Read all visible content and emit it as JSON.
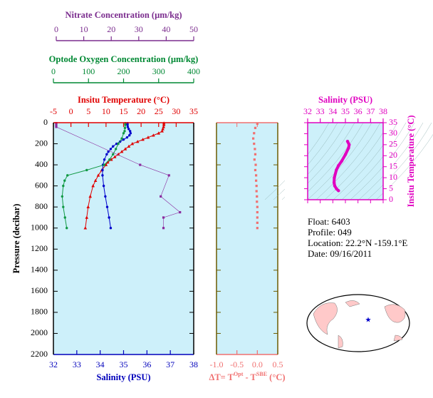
{
  "chart_data": [
    {
      "type": "scatter",
      "ylabel": "Pressure (decibar)",
      "ylim": [
        0,
        2200
      ],
      "y_inverted": true,
      "yticks": [
        0,
        200,
        400,
        600,
        800,
        1000,
        1200,
        1400,
        1600,
        1800,
        2000,
        2200
      ],
      "background": "#cdf0fa",
      "xaxes": [
        {
          "label": "Nitrate Concentration (µm/kg)",
          "lim": [
            0,
            50
          ],
          "ticks": [
            0,
            10,
            20,
            30,
            40,
            50
          ],
          "color": "#7b2d8e"
        },
        {
          "label": "Optode Oxygen Concentration (µm/kg)",
          "lim": [
            0,
            400
          ],
          "ticks": [
            0,
            100,
            200,
            300,
            400
          ],
          "color": "#008833"
        },
        {
          "label": "Insitu Temperature (°C)",
          "lim": [
            -5,
            35
          ],
          "ticks": [
            -5,
            0,
            5,
            10,
            15,
            20,
            25,
            30,
            35
          ],
          "color": "#e00000"
        },
        {
          "label": "Salinity (PSU)",
          "lim": [
            32,
            38
          ],
          "ticks": [
            32,
            33,
            34,
            35,
            36,
            37,
            38
          ],
          "color": "#0000bb"
        }
      ],
      "series": [
        {
          "axis": 2,
          "color": "#e00000",
          "marker": "triangle",
          "x": [
            26.5,
            26.5,
            26.4,
            26.2,
            26,
            25,
            23.5,
            22,
            20.5,
            19,
            17.5,
            16.5,
            15.5,
            14.5,
            13.5,
            12.5,
            11.5,
            10.5,
            10,
            8.8,
            7.8,
            7,
            6.3,
            5.5,
            4.9,
            4.5,
            4.1
          ],
          "y": [
            5,
            20,
            40,
            60,
            80,
            100,
            120,
            140,
            160,
            180,
            200,
            225,
            250,
            275,
            300,
            325,
            350,
            375,
            400,
            450,
            500,
            550,
            600,
            700,
            800,
            900,
            1000
          ]
        },
        {
          "axis": 3,
          "color": "#0000cc",
          "marker": "circle",
          "x": [
            35.17,
            35.17,
            35.18,
            35.22,
            35.28,
            35.3,
            35.25,
            35.15,
            35.0,
            34.85,
            34.7,
            34.55,
            34.45,
            34.35,
            34.28,
            34.18,
            34.12,
            34.1,
            34.1,
            34.15,
            34.22,
            34.3,
            34.38,
            34.45
          ],
          "y": [
            5,
            20,
            40,
            60,
            80,
            100,
            120,
            140,
            160,
            180,
            200,
            225,
            250,
            275,
            300,
            350,
            400,
            450,
            500,
            600,
            700,
            800,
            900,
            1000
          ]
        },
        {
          "axis": 1,
          "color": "#119944",
          "marker": "circle",
          "x": [
            205,
            205,
            204,
            203,
            200,
            195,
            185,
            178,
            170,
            160,
            145,
            95,
            40,
            32,
            28,
            25,
            28,
            33,
            38
          ],
          "y": [
            5,
            20,
            50,
            80,
            100,
            150,
            200,
            250,
            300,
            350,
            400,
            450,
            500,
            550,
            600,
            700,
            800,
            900,
            1000
          ]
        },
        {
          "axis": 0,
          "color": "#8b2c9e",
          "marker": "square",
          "x": [
            0,
            0,
            0,
            30.5,
            41,
            38,
            45,
            39,
            39
          ],
          "y": [
            5,
            20,
            40,
            400,
            500,
            700,
            850,
            900,
            1000
          ]
        }
      ]
    },
    {
      "type": "scatter",
      "xlabel": [
        "ΔT= T",
        "Opt",
        " - T",
        "SBE",
        " (°C)"
      ],
      "xlim": [
        -1,
        0.5
      ],
      "xticks": [
        {
          "value": -1,
          "label": "-1.0"
        },
        {
          "value": -0.5,
          "label": "-0.5"
        },
        {
          "value": 0,
          "label": "0.0"
        },
        0.5
      ],
      "ylim": [
        0,
        2200
      ],
      "color": "#f07070",
      "background": "#cdf0fa",
      "x": [
        0,
        -0.05,
        -0.08,
        -0.1,
        -0.08,
        -0.06,
        -0.05,
        -0.07,
        -0.04,
        -0.05,
        -0.03,
        -0.03,
        -0.02,
        -0.02,
        -0.01,
        -0.01,
        0,
        0,
        0,
        0,
        0
      ],
      "y": [
        10,
        50,
        100,
        150,
        200,
        250,
        300,
        350,
        400,
        450,
        500,
        550,
        600,
        650,
        700,
        750,
        800,
        850,
        900,
        950,
        1000
      ]
    },
    {
      "type": "line",
      "xlabel": "Salinity (PSU)",
      "xlim": [
        32,
        38
      ],
      "xticks": [
        32,
        33,
        34,
        35,
        36,
        37,
        38
      ],
      "ylabel": "Insitu Temperature (°C)",
      "ylim": [
        0,
        35
      ],
      "yticks": [
        0,
        5,
        10,
        15,
        20,
        25,
        30,
        35
      ],
      "color": "#e000c0",
      "background": "#cdf0fa",
      "x": [
        35.17,
        35.3,
        35.25,
        35.0,
        34.7,
        34.45,
        34.28,
        34.12,
        34.1,
        34.15,
        34.3,
        34.45
      ],
      "y": [
        26.5,
        25,
        23.5,
        20.5,
        17.5,
        15.5,
        13.5,
        10,
        7.8,
        6.3,
        4.9,
        4.1
      ]
    }
  ],
  "float_info": [
    "Float:  6403",
    "Profile:  049",
    "Location:  22.2°N  -159.1°E",
    "Date:  09/16/2011"
  ]
}
